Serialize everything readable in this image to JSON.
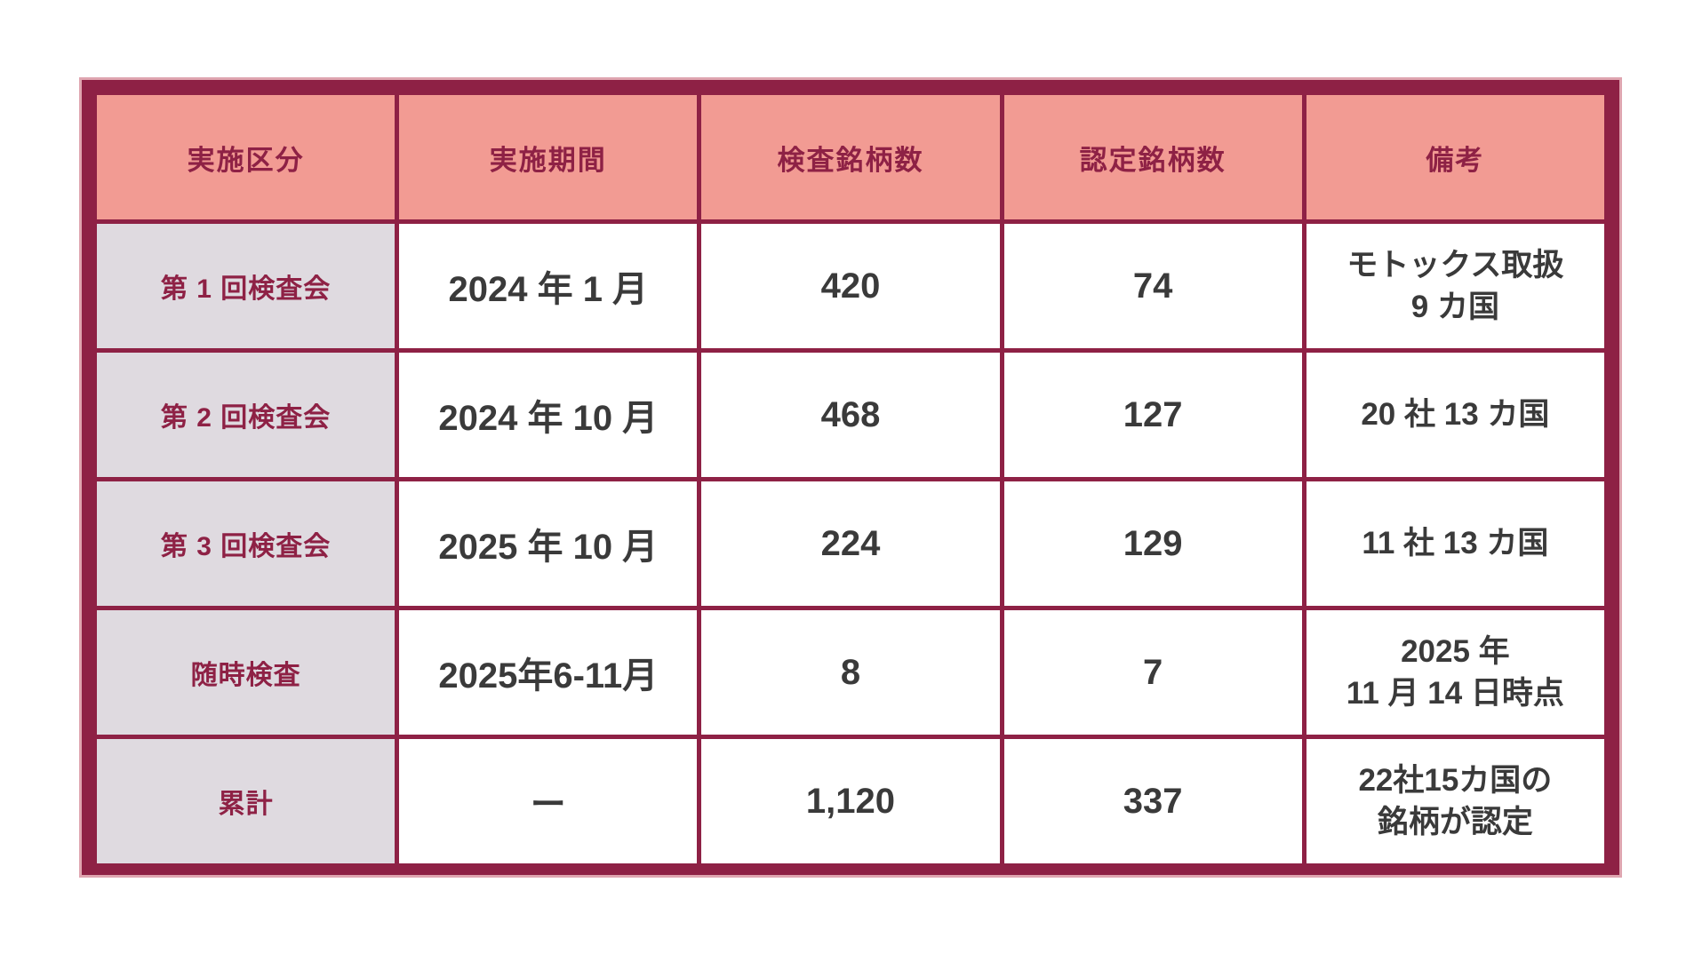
{
  "colors": {
    "border": "#8E2145",
    "header_bg": "#F29B93",
    "header_text": "#8E2145",
    "category_bg": "#DFDAE0",
    "category_text": "#8E2145",
    "data_text": "#3A3A3A",
    "outer_glow": "#DFA5B0",
    "page_bg": "#FFFFFF"
  },
  "table": {
    "headers": [
      "実施区分",
      "実施期間",
      "検査銘柄数",
      "認定銘柄数",
      "備考"
    ],
    "rows": [
      {
        "category": "第 1 回検査会",
        "period": "2024 年 1 月",
        "inspected": "420",
        "certified": "74",
        "remark": "モトックス取扱\n9 カ国"
      },
      {
        "category": "第 2 回検査会",
        "period": "2024 年 10 月",
        "inspected": "468",
        "certified": "127",
        "remark": "20 社 13 カ国"
      },
      {
        "category": "第 3 回検査会",
        "period": "2025 年 10 月",
        "inspected": "224",
        "certified": "129",
        "remark": "11 社 13 カ国"
      },
      {
        "category": "随時検査",
        "period": "2025年6-11月",
        "inspected": "8",
        "certified": "7",
        "remark": "2025 年\n11 月 14 日時点"
      },
      {
        "category": "累計",
        "period": "ー",
        "inspected": "1,120",
        "certified": "337",
        "remark": "22社15カ国の\n銘柄が認定"
      }
    ]
  },
  "chart_data": {
    "type": "table",
    "columns": [
      "実施区分",
      "実施期間",
      "検査銘柄数",
      "認定銘柄数",
      "備考"
    ],
    "rows": [
      [
        "第1回検査会",
        "2024年1月",
        420,
        74,
        "モトックス取扱 9カ国"
      ],
      [
        "第2回検査会",
        "2024年10月",
        468,
        127,
        "20社13カ国"
      ],
      [
        "第3回検査会",
        "2025年10月",
        224,
        129,
        "11社13カ国"
      ],
      [
        "随時検査",
        "2025年6-11月",
        8,
        7,
        "2025年11月14日時点"
      ],
      [
        "累計",
        "ー",
        1120,
        337,
        "22社15カ国の銘柄が認定"
      ]
    ],
    "totals_row": "累計",
    "notes": "検査銘柄数累計 1,120 / 認定銘柄数累計 337"
  }
}
